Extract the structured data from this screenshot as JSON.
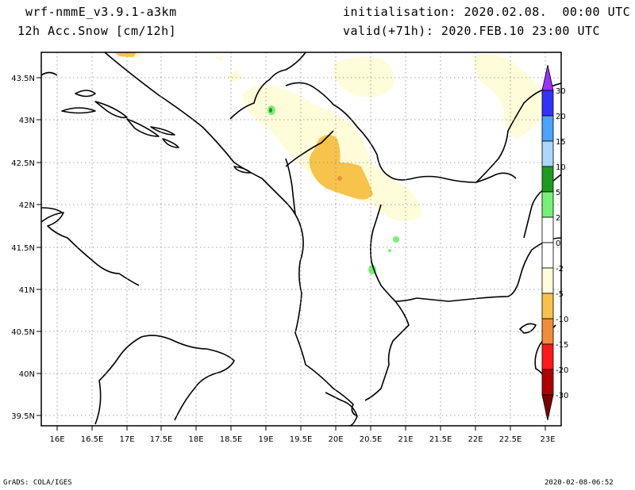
{
  "header": {
    "model": "wrf-nmmE_v3.9.1-a3km",
    "field": "12h Acc.Snow [cm/12h]",
    "init": "initialisation: 2020.02.08.  00:00 UTC",
    "valid": "valid(+71h): 2020.FEB.10 23:00 UTC"
  },
  "map": {
    "lon_ticks": [
      "16E",
      "16.5E",
      "17E",
      "17.5E",
      "18E",
      "18.5E",
      "19E",
      "19.5E",
      "20E",
      "20.5E",
      "21E",
      "21.5E",
      "22E",
      "22.5E",
      "23E"
    ],
    "lat_ticks": [
      "43.5N",
      "43N",
      "42.5N",
      "42N",
      "41.5N",
      "41N",
      "40.5N",
      "40N",
      "39.5N"
    ],
    "lon_range": [
      15.9,
      23.1
    ],
    "lat_range": [
      39.35,
      43.75
    ]
  },
  "colorbar": {
    "labels": [
      "30",
      "20",
      "15",
      "10",
      "5",
      "2",
      "0",
      "-2",
      "-5",
      "-10",
      "-15",
      "-20",
      "-30"
    ],
    "positive_colors": [
      "#9932ff",
      "#3232ff",
      "#4aa3ff",
      "#aad6ff",
      "#1e9b1e",
      "#78f078"
    ],
    "negative_colors": [
      "#fffcd9",
      "#f7c34a",
      "#f28c3c",
      "#ff1a1a",
      "#b20000",
      "#7a0000"
    ]
  },
  "footer": {
    "left": "GrADS: COLA/IGES",
    "right": "2020-02-08-06:52"
  }
}
